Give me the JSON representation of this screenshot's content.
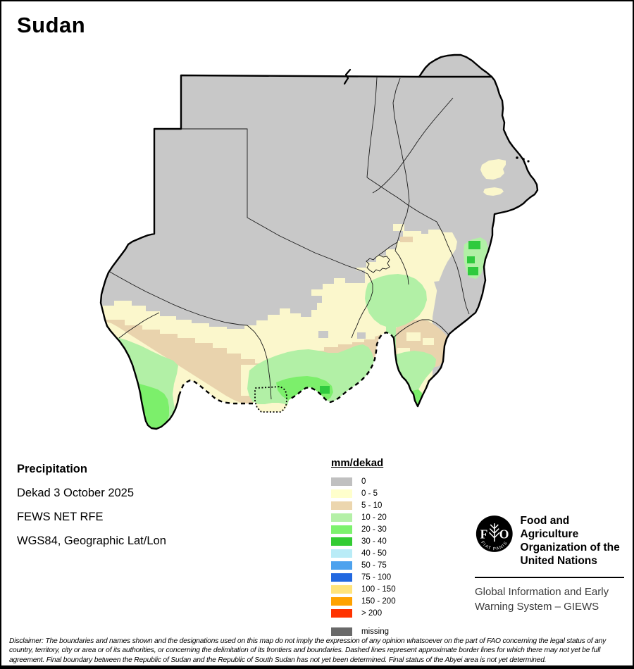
{
  "title": "Sudan",
  "info": {
    "heading": "Precipitation",
    "lines": [
      "Dekad 3 October 2025",
      "FEWS NET RFE",
      "WGS84, Geographic Lat/Lon"
    ]
  },
  "legend": {
    "title": "mm/dekad",
    "items": [
      {
        "label": "0",
        "color": "#c0c0c0"
      },
      {
        "label": "0 - 5",
        "color": "#ffffcc"
      },
      {
        "label": "5 - 10",
        "color": "#ecd6ae"
      },
      {
        "label": "10 - 20",
        "color": "#b4f0a7"
      },
      {
        "label": "20 - 30",
        "color": "#7df26d"
      },
      {
        "label": "30 - 40",
        "color": "#33cc33"
      },
      {
        "label": "40 - 50",
        "color": "#b9ecf7"
      },
      {
        "label": "50 - 75",
        "color": "#4da2ee"
      },
      {
        "label": "75 - 100",
        "color": "#2268e0"
      },
      {
        "label": "100 - 150",
        "color": "#ffe37a"
      },
      {
        "label": "150 - 200",
        "color": "#ffa200"
      },
      {
        "label": "> 200",
        "color": "#ff3300"
      }
    ],
    "missing": {
      "label": "missing",
      "color": "#696969"
    }
  },
  "map": {
    "country": "Sudan",
    "base_gray": "#c8c8c8",
    "zero_patch_gray": "#bcbcbc",
    "border_note": "dashed = approximate border, dotted = Abyei area"
  },
  "org": {
    "logo_letters": {
      "f": "F",
      "o": "O"
    },
    "motto": "FIAT PANIS",
    "name_lines": [
      "Food and Agriculture",
      "Organization of the",
      "United Nations"
    ],
    "subtitle": "Global Information and Early Warning System – GIEWS"
  },
  "disclaimer": "Disclaimer: The boundaries and names shown and the designations used on this map do not imply the expression of any opinion whatsoever on the part of FAO concerning the legal status of any country, territory, city or area or of its authorities, or concerning the delimitation of its frontiers and boundaries. Dashed lines represent approximate border lines for which there may not yet be full agreement.  Final boundary between the Republic of Sudan and the Republic of South Sudan has not yet been determined. Final status of the Abyei area is not yet determined."
}
